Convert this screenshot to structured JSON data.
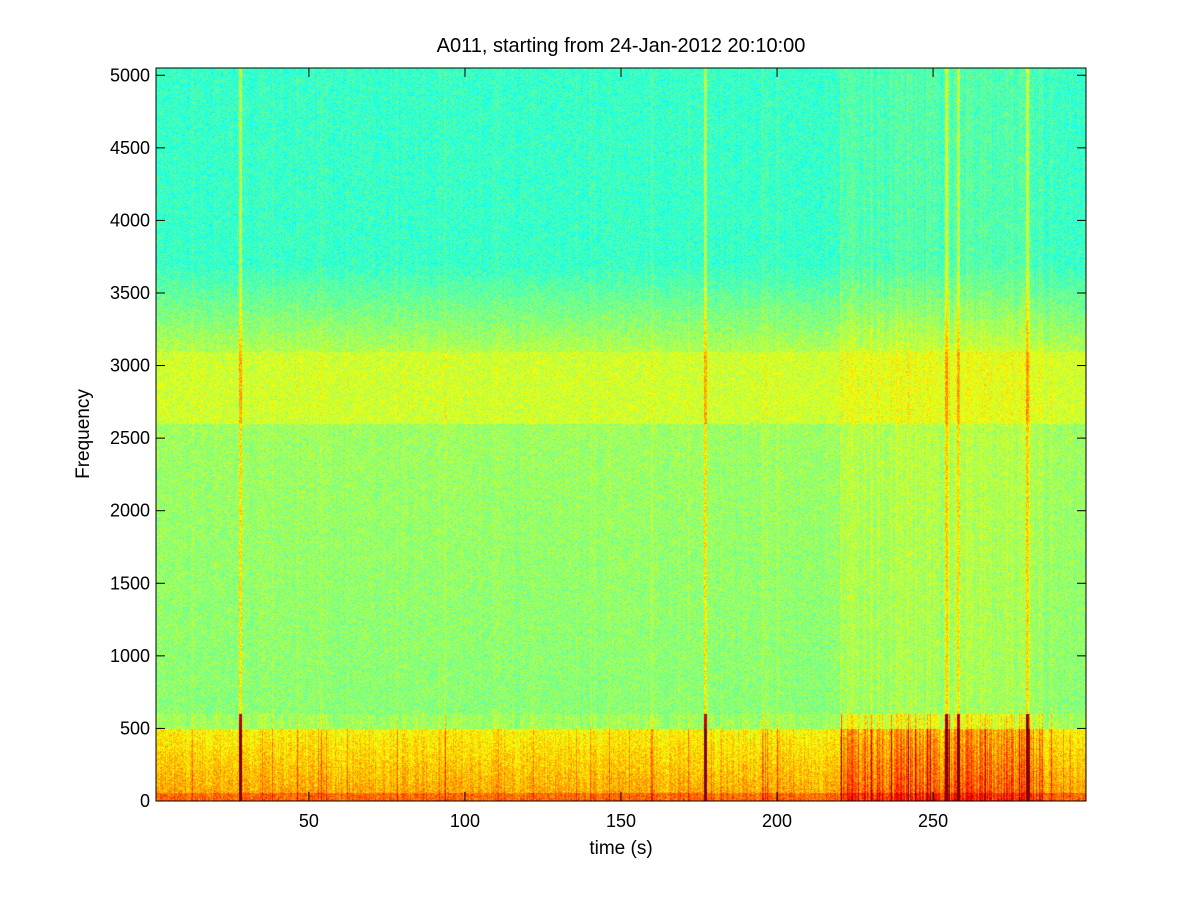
{
  "chart_data": {
    "type": "heatmap",
    "title": "A011, starting from 24-Jan-2012 20:10:00",
    "xlabel": "time (s)",
    "ylabel": "Frequency",
    "xlim": [
      1,
      299
    ],
    "ylim": [
      0,
      5050
    ],
    "x_ticks": [
      50,
      100,
      150,
      200,
      250
    ],
    "y_ticks": [
      0,
      500,
      1000,
      1500,
      2000,
      2500,
      3000,
      3500,
      4000,
      4500,
      5000
    ],
    "colormap": "jet",
    "colors": {
      "background_high_freq": "#2ee8d0",
      "mid_band": "#c8f040",
      "strong_low_freq": "#d01010"
    },
    "features": {
      "strong_energy_band_hz": [
        0,
        500
      ],
      "secondary_band_hz": [
        2700,
        3000
      ],
      "transient_times_s": [
        28,
        177,
        254,
        258,
        280
      ],
      "high_activity_time_range_s": [
        220,
        285
      ]
    },
    "grid": false,
    "legend": "none"
  }
}
